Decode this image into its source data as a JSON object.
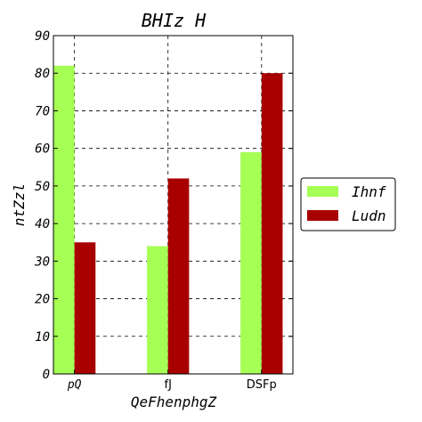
{
  "chart_data": {
    "type": "bar",
    "title": "BHIz H",
    "xlabel": "QeFhenphgZ",
    "ylabel": "ntZzl",
    "categories": [
      "pQ",
      "fJ",
      "DSFp"
    ],
    "series": [
      {
        "name": "Ihnf",
        "values": [
          82,
          34,
          59
        ],
        "color": "#a6ff55"
      },
      {
        "name": "Ludn",
        "values": [
          35,
          52,
          80
        ],
        "color": "#a80000"
      }
    ],
    "ylim": [
      0,
      90
    ],
    "yticks": [
      0,
      10,
      20,
      30,
      40,
      50,
      60,
      70,
      80,
      90
    ],
    "grid": true,
    "legend_position": "right"
  }
}
